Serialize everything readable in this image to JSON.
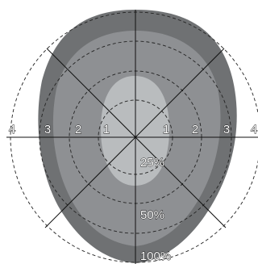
{
  "diagram": {
    "left_labels": [
      "4",
      "3",
      "2",
      "1"
    ],
    "right_labels": [
      "1",
      "2",
      "3",
      "4"
    ],
    "percent_labels": [
      "25%",
      "50%",
      "100%"
    ]
  }
}
